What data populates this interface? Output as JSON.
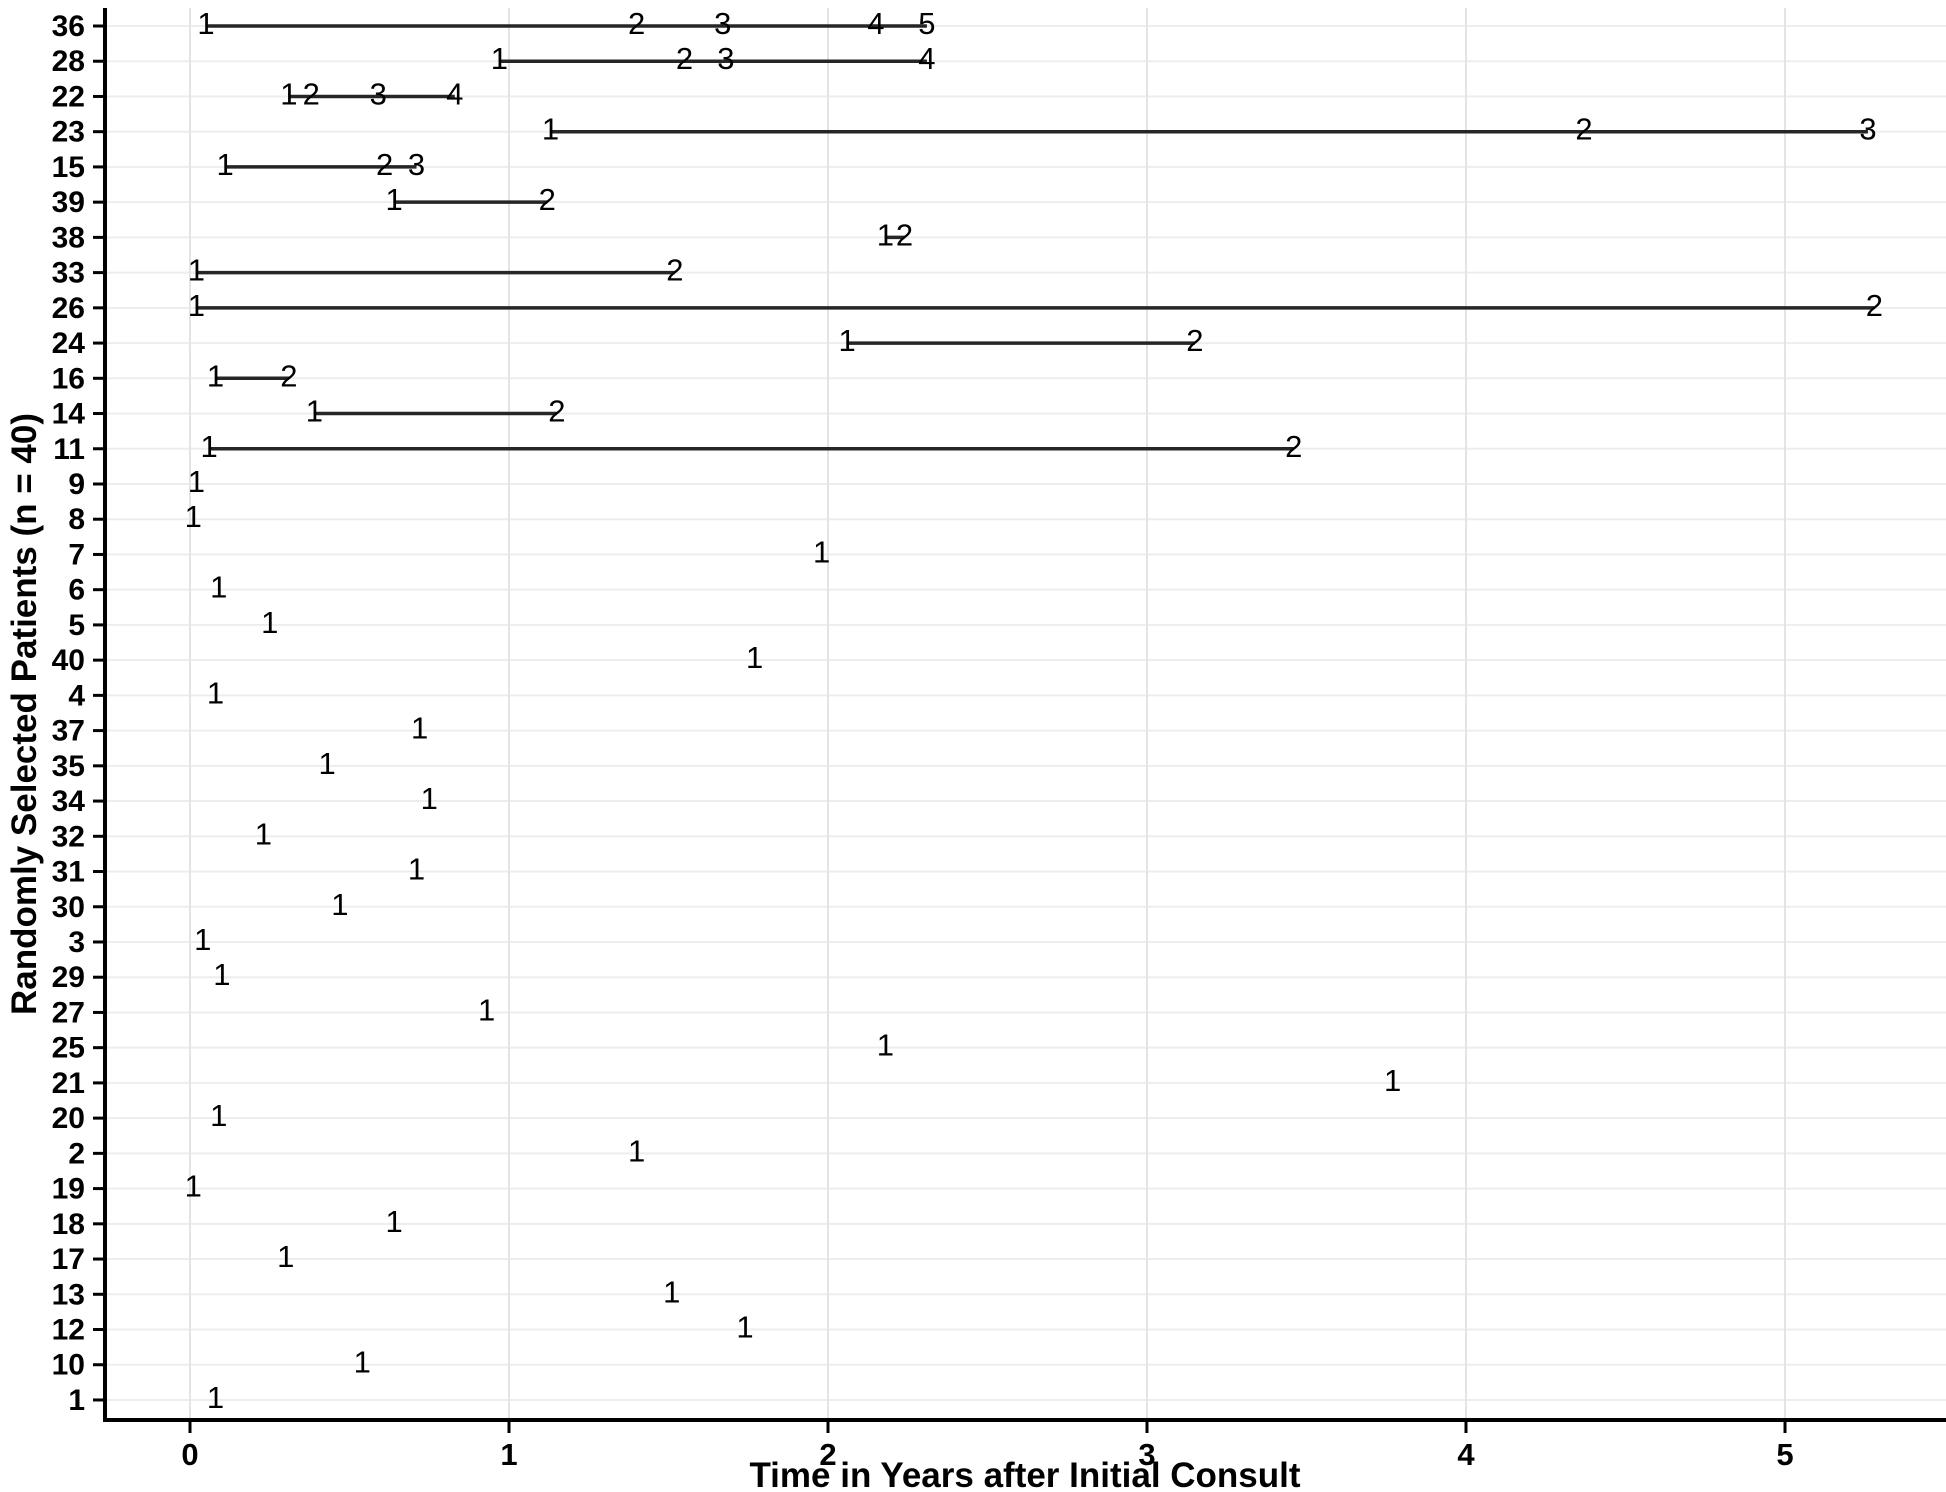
{
  "chart_data": {
    "type": "scatter",
    "subtype": "patient-event-timeline",
    "xlabel": "Time in Years after Initial Consult",
    "ylabel": "Randomly Selected Patients (n = 40)",
    "x_ticks": [
      "0",
      "1",
      "2",
      "3",
      "4",
      "5"
    ],
    "x_tick_values": [
      0,
      1,
      2,
      3,
      4,
      5
    ],
    "xlim": [
      -0.27,
      5.5
    ],
    "grid": "on",
    "legend": "none",
    "marker_style": "numeric-event-labels-on-line",
    "line_color": "#262626",
    "grid_color": "#ededed",
    "patients": [
      {
        "id": "36",
        "times": [
          0.05,
          1.4,
          1.67,
          2.15,
          2.31
        ],
        "labels": [
          "1",
          "2",
          "3",
          "4",
          "5"
        ]
      },
      {
        "id": "28",
        "times": [
          0.97,
          1.55,
          1.68,
          2.31
        ],
        "labels": [
          "1",
          "2",
          "3",
          "4"
        ]
      },
      {
        "id": "22",
        "times": [
          0.31,
          0.38,
          0.59,
          0.83
        ],
        "labels": [
          "1",
          "2",
          "3",
          "4"
        ]
      },
      {
        "id": "23",
        "times": [
          1.13,
          4.37,
          5.26
        ],
        "labels": [
          "1",
          "2",
          "3"
        ]
      },
      {
        "id": "15",
        "times": [
          0.11,
          0.61,
          0.71
        ],
        "labels": [
          "1",
          "2",
          "3"
        ]
      },
      {
        "id": "39",
        "times": [
          0.64,
          1.12
        ],
        "labels": [
          "1",
          "2"
        ]
      },
      {
        "id": "38",
        "times": [
          2.18,
          2.24
        ],
        "labels": [
          "1",
          "2"
        ]
      },
      {
        "id": "33",
        "times": [
          0.02,
          1.52
        ],
        "labels": [
          "1",
          "2"
        ]
      },
      {
        "id": "26",
        "times": [
          0.02,
          5.28
        ],
        "labels": [
          "1",
          "2"
        ]
      },
      {
        "id": "24",
        "times": [
          2.06,
          3.15
        ],
        "labels": [
          "1",
          "2"
        ]
      },
      {
        "id": "16",
        "times": [
          0.08,
          0.31
        ],
        "labels": [
          "1",
          "2"
        ]
      },
      {
        "id": "14",
        "times": [
          0.39,
          1.15
        ],
        "labels": [
          "1",
          "2"
        ]
      },
      {
        "id": "11",
        "times": [
          0.06,
          3.46
        ],
        "labels": [
          "1",
          "2"
        ]
      },
      {
        "id": "9",
        "times": [
          0.02
        ],
        "labels": [
          "1"
        ]
      },
      {
        "id": "8",
        "times": [
          0.01
        ],
        "labels": [
          "1"
        ]
      },
      {
        "id": "7",
        "times": [
          1.98
        ],
        "labels": [
          "1"
        ]
      },
      {
        "id": "6",
        "times": [
          0.09
        ],
        "labels": [
          "1"
        ]
      },
      {
        "id": "5",
        "times": [
          0.25
        ],
        "labels": [
          "1"
        ]
      },
      {
        "id": "40",
        "times": [
          1.77
        ],
        "labels": [
          "1"
        ]
      },
      {
        "id": "4",
        "times": [
          0.08
        ],
        "labels": [
          "1"
        ]
      },
      {
        "id": "37",
        "times": [
          0.72
        ],
        "labels": [
          "1"
        ]
      },
      {
        "id": "35",
        "times": [
          0.43
        ],
        "labels": [
          "1"
        ]
      },
      {
        "id": "34",
        "times": [
          0.75
        ],
        "labels": [
          "1"
        ]
      },
      {
        "id": "32",
        "times": [
          0.23
        ],
        "labels": [
          "1"
        ]
      },
      {
        "id": "31",
        "times": [
          0.71
        ],
        "labels": [
          "1"
        ]
      },
      {
        "id": "30",
        "times": [
          0.47
        ],
        "labels": [
          "1"
        ]
      },
      {
        "id": "3",
        "times": [
          0.04
        ],
        "labels": [
          "1"
        ]
      },
      {
        "id": "29",
        "times": [
          0.1
        ],
        "labels": [
          "1"
        ]
      },
      {
        "id": "27",
        "times": [
          0.93
        ],
        "labels": [
          "1"
        ]
      },
      {
        "id": "25",
        "times": [
          2.18
        ],
        "labels": [
          "1"
        ]
      },
      {
        "id": "21",
        "times": [
          3.77
        ],
        "labels": [
          "1"
        ]
      },
      {
        "id": "20",
        "times": [
          0.09
        ],
        "labels": [
          "1"
        ]
      },
      {
        "id": "2",
        "times": [
          1.4
        ],
        "labels": [
          "1"
        ]
      },
      {
        "id": "19",
        "times": [
          0.01
        ],
        "labels": [
          "1"
        ]
      },
      {
        "id": "18",
        "times": [
          0.64
        ],
        "labels": [
          "1"
        ]
      },
      {
        "id": "17",
        "times": [
          0.3
        ],
        "labels": [
          "1"
        ]
      },
      {
        "id": "13",
        "times": [
          1.51
        ],
        "labels": [
          "1"
        ]
      },
      {
        "id": "12",
        "times": [
          1.74
        ],
        "labels": [
          "1"
        ]
      },
      {
        "id": "10",
        "times": [
          0.54
        ],
        "labels": [
          "1"
        ]
      },
      {
        "id": "1",
        "times": [
          0.08
        ],
        "labels": [
          "1"
        ]
      }
    ]
  }
}
